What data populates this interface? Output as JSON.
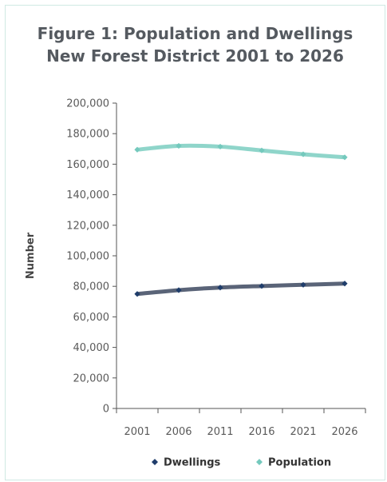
{
  "chart_data": {
    "type": "line",
    "title_line1": "Figure 1: Population and Dwellings",
    "title_line2": "New Forest District 2001 to 2026",
    "ylabel": "Number",
    "xlabel": "",
    "categories": [
      "2001",
      "2006",
      "2011",
      "2016",
      "2021",
      "2026"
    ],
    "yticks": [
      "0",
      "20,000",
      "40,000",
      "60,000",
      "80,000",
      "100,000",
      "120,000",
      "140,000",
      "160,000",
      "180,000",
      "200,000"
    ],
    "ylim": [
      0,
      200000
    ],
    "legend_position": "bottom",
    "series": [
      {
        "name": "Dwellings",
        "color": "#1f3d6b",
        "line_color": "#5a6478",
        "values": [
          75000,
          77500,
          79200,
          80200,
          81000,
          81800
        ]
      },
      {
        "name": "Population",
        "color": "#74c9bd",
        "line_color": "#8fd5ca",
        "values": [
          169500,
          172000,
          171500,
          169000,
          166500,
          164500
        ]
      }
    ]
  }
}
